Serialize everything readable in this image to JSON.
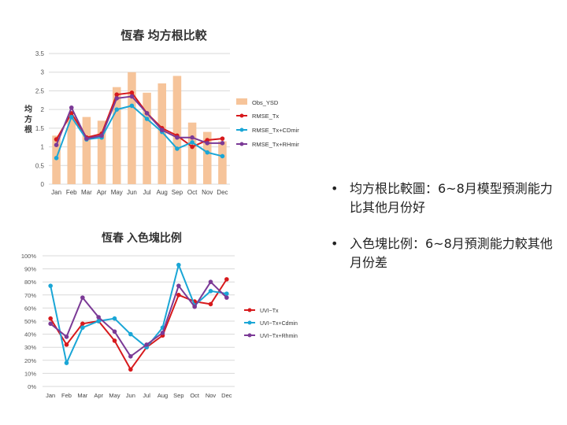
{
  "chart_data": [
    {
      "type": "bar+line",
      "title": "恆春 均方根比較",
      "ylabel": "均方根",
      "categories": [
        "Jan",
        "Feb",
        "Mar",
        "Apr",
        "May",
        "Jun",
        "Jul",
        "Aug",
        "Sep",
        "Oct",
        "Nov",
        "Dec"
      ],
      "ylim": [
        0,
        3.5
      ],
      "yticks": [
        "0",
        "0.5",
        "1",
        "1.5",
        "2",
        "2.5",
        "3",
        "3.5"
      ],
      "legend_position": "right",
      "bars": {
        "name": "Obs_YSD",
        "color": "#f6c49a",
        "values": [
          1.3,
          1.8,
          1.8,
          1.7,
          2.6,
          3.0,
          2.45,
          2.7,
          2.9,
          1.65,
          1.4,
          1.15
        ]
      },
      "series": [
        {
          "name": "RMSE_Tx",
          "color": "#d7191c",
          "values": [
            1.2,
            1.9,
            1.25,
            1.35,
            2.4,
            2.45,
            1.9,
            1.5,
            1.3,
            1.0,
            1.18,
            1.22
          ]
        },
        {
          "name": "RMSE_Tx+CDmin",
          "color": "#1aa6d6",
          "values": [
            0.7,
            1.8,
            1.2,
            1.25,
            2.0,
            2.1,
            1.75,
            1.4,
            0.95,
            1.12,
            0.85,
            0.75
          ]
        },
        {
          "name": "RMSE_Tx+RHmin",
          "color": "#7b3a96",
          "values": [
            1.05,
            2.05,
            1.22,
            1.3,
            2.3,
            2.35,
            1.9,
            1.45,
            1.25,
            1.25,
            1.1,
            1.1
          ]
        }
      ]
    },
    {
      "type": "line",
      "title": "恆春 入色塊比例",
      "categories": [
        "Jan",
        "Feb",
        "Mar",
        "Apr",
        "May",
        "Jun",
        "Jul",
        "Aug",
        "Sep",
        "Oct",
        "Nov",
        "Dec"
      ],
      "ylim": [
        0,
        100
      ],
      "yticks": [
        "0%",
        "10%",
        "20%",
        "30%",
        "40%",
        "50%",
        "60%",
        "70%",
        "80%",
        "90%",
        "100%"
      ],
      "legend_position": "right",
      "series": [
        {
          "name": "UVI~Tx",
          "color": "#d7191c",
          "values": [
            52,
            32,
            48,
            50,
            35,
            13,
            30,
            39,
            70,
            65,
            63,
            82
          ]
        },
        {
          "name": "UVI~Tx+Cdmin",
          "color": "#1aa6d6",
          "values": [
            77,
            18,
            45,
            50,
            52,
            40,
            30,
            45,
            93,
            62,
            73,
            71
          ]
        },
        {
          "name": "UVI~Tx+Rhmin",
          "color": "#7b3a96",
          "values": [
            48,
            38,
            68,
            53,
            42,
            23,
            32,
            41,
            77,
            61,
            80,
            68
          ]
        }
      ]
    }
  ],
  "bullets": [
    "均方根比較圖：6~8月模型預測能力比其他月份好",
    "入色塊比例：6~8月預測能力較其他月份差"
  ],
  "bullet_symbol": "•"
}
